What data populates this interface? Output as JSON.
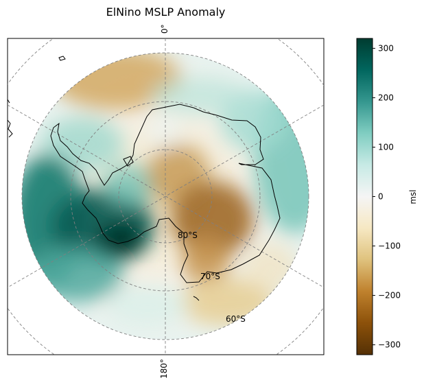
{
  "title": "ElNino MSLP Anomaly",
  "map": {
    "projection": "south-polar-stereographic",
    "lon_labels": {
      "top": "0°",
      "bottom": "180°"
    },
    "lat_labels": [
      "80°S",
      "70°S",
      "60°S"
    ]
  },
  "colorbar": {
    "label": "msl",
    "cmap": "BrBG",
    "range": [
      -320,
      320
    ],
    "ticks": [
      "300",
      "200",
      "100",
      "0",
      "−100",
      "−200",
      "−300"
    ],
    "colors": [
      "#543005",
      "#8c510a",
      "#bf812d",
      "#dfc27d",
      "#f6e8c3",
      "#f5f5f5",
      "#c7eae5",
      "#80cdc1",
      "#35978f",
      "#01665e",
      "#003c30"
    ]
  }
}
